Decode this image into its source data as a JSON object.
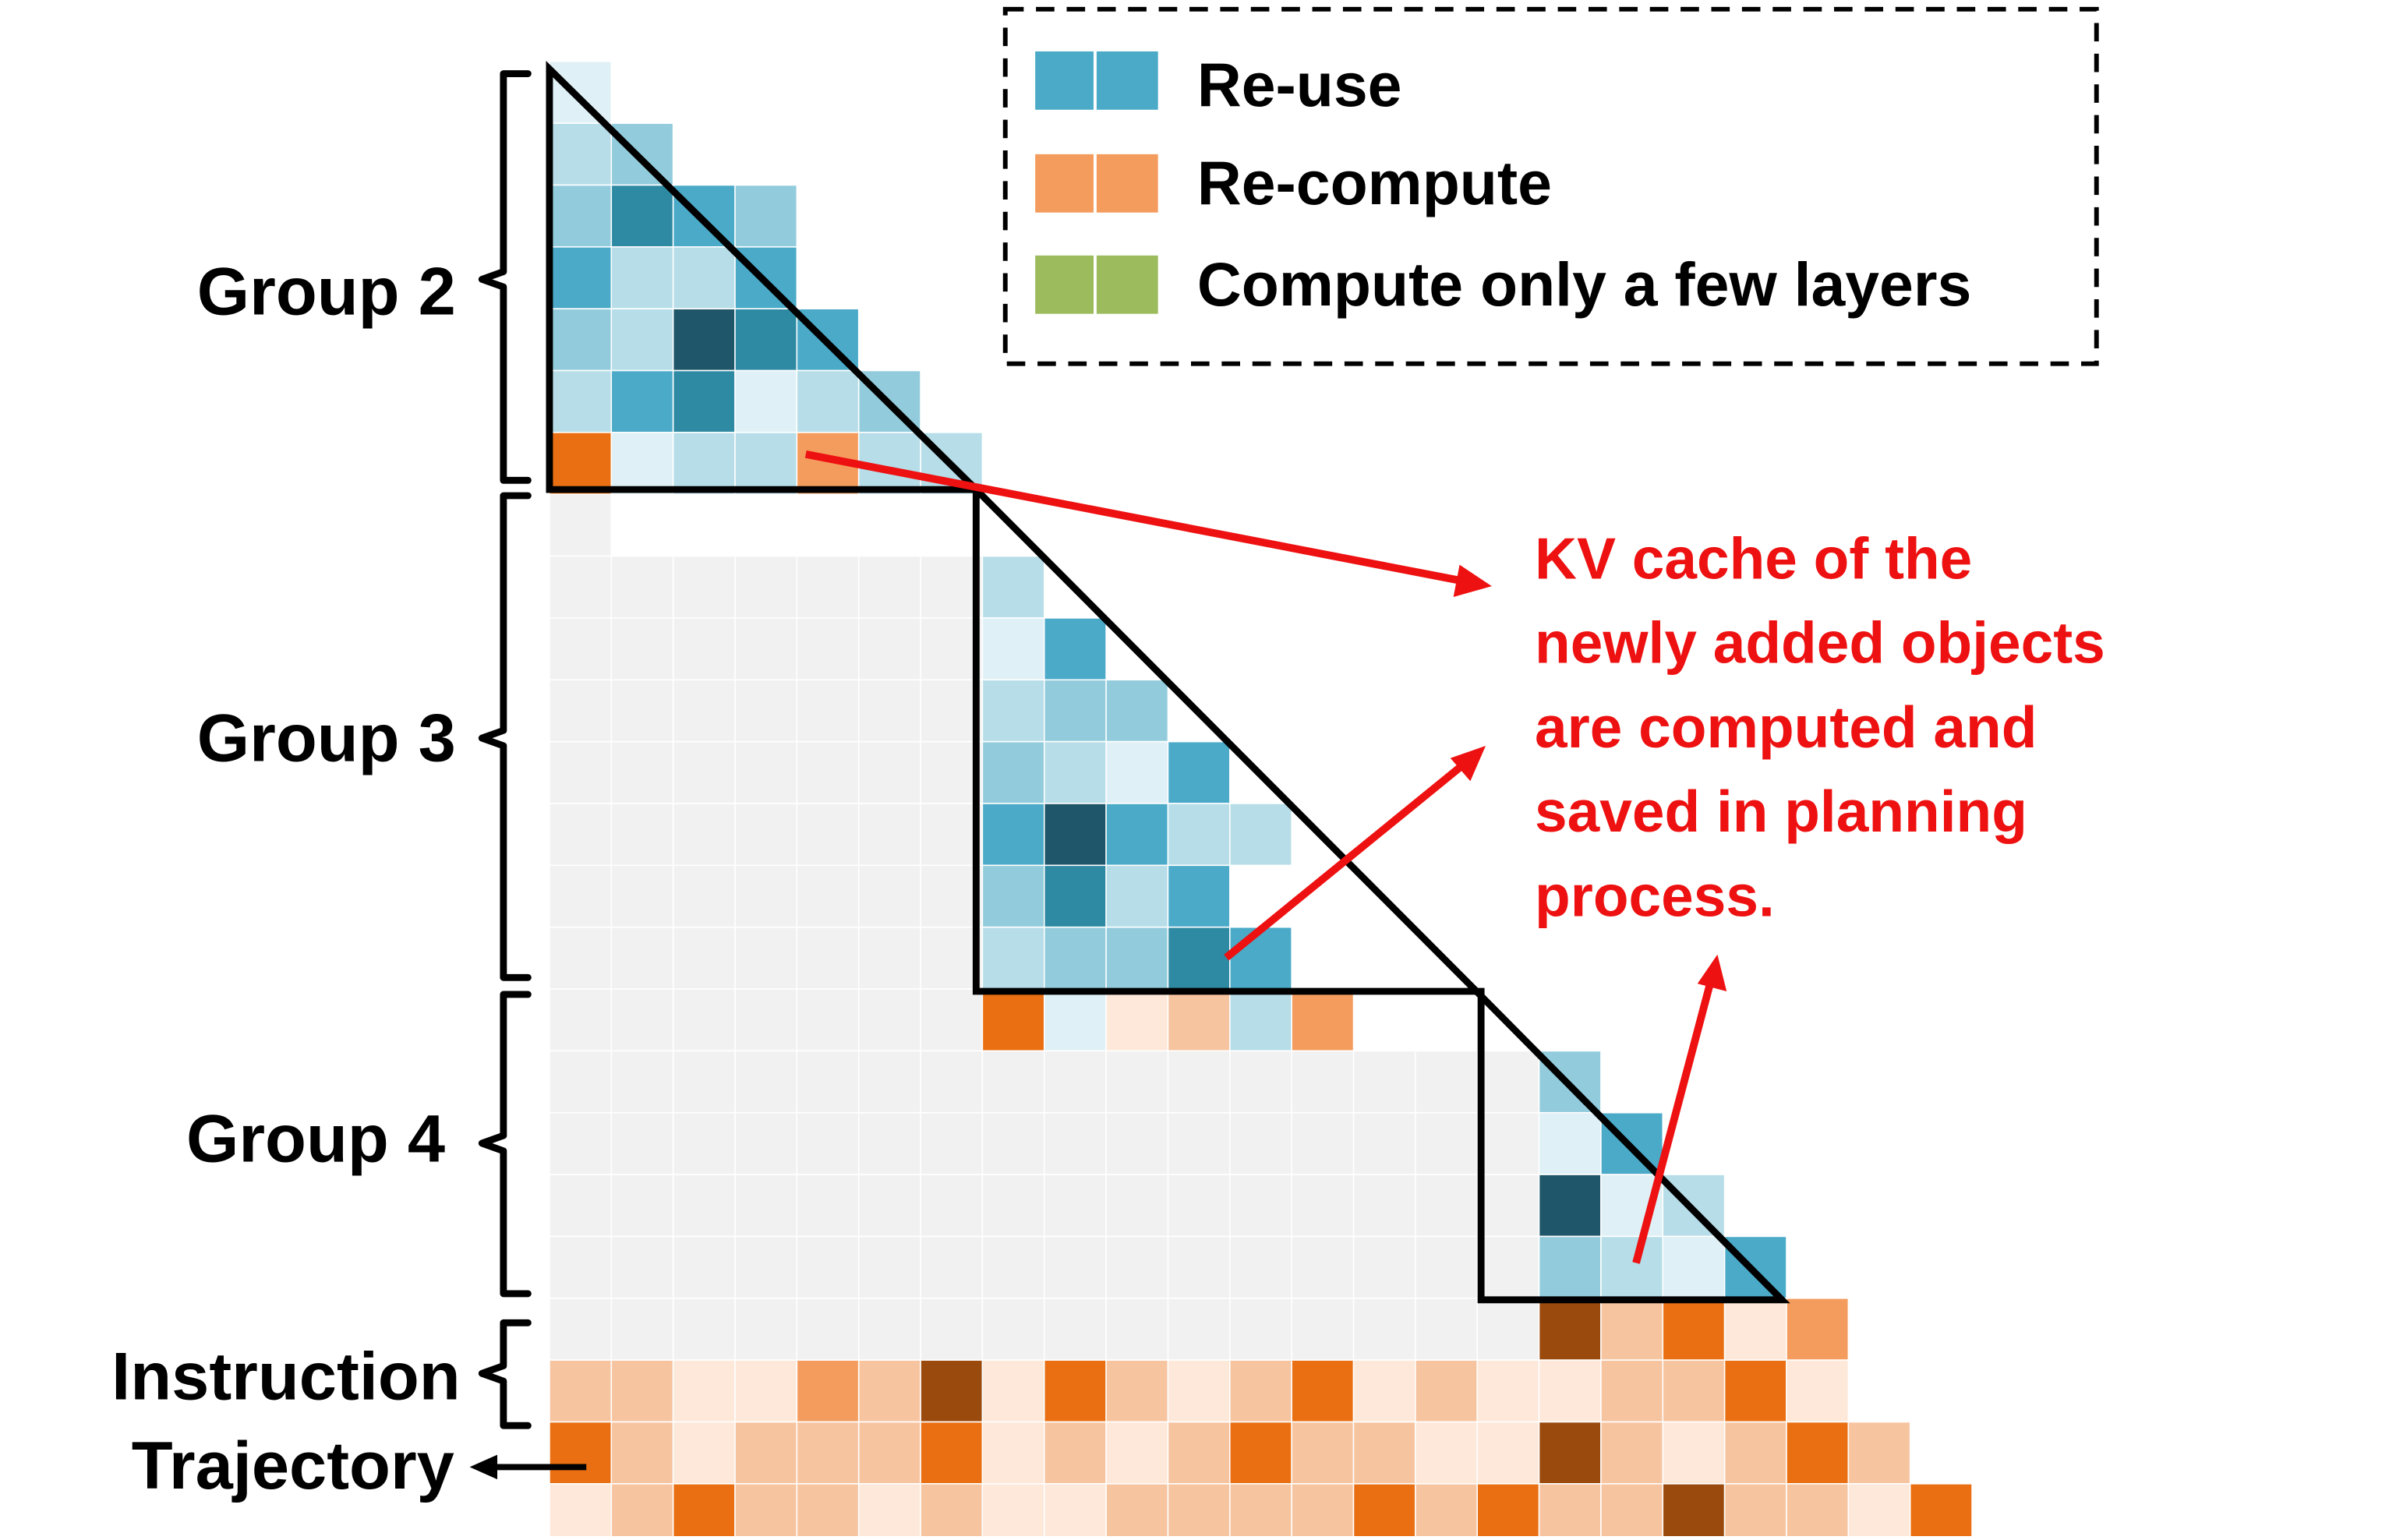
{
  "palette": {
    "empty": "#f1f1f1",
    "teal": [
      "#dff0f6",
      "#b6dde8",
      "#92ccdc",
      "#4aaac8",
      "#2e8aa3",
      "#1f5669"
    ],
    "orange": [
      "#fde8d9",
      "#f7c4a0",
      "#f49c5d",
      "#e96f12",
      "#9b4a0d"
    ],
    "green": "#9bbb5c",
    "annotation": "#ee1111",
    "lines": "#000000"
  },
  "legend": {
    "reuse": {
      "label": "Re-use",
      "color": "#4aaac8"
    },
    "recompute": {
      "label": "Re-compute",
      "color": "#f49c5d"
    },
    "partial": {
      "label": "Compute only a few layers",
      "color": "#9bbb5c"
    }
  },
  "groups": {
    "g2": {
      "label": "Group 2"
    },
    "g3": {
      "label": "Group 3"
    },
    "g4": {
      "label": "Group 4"
    },
    "instruction": {
      "label": "Instruction"
    },
    "trajectory": {
      "label": "Trajectory"
    }
  },
  "annotation": {
    "lines": [
      "KV cache of the",
      "newly added objects",
      "are computed and",
      "saved in planning",
      "process."
    ]
  },
  "matrix": {
    "rows": [
      "0",
      "12",
      "2432",
      "3113",
      "21543",
      "134012",
      "o3011o211",
      "X",
      "XXXXXXX1",
      "XXXXXXX03",
      "XXXXXXX122",
      "XXXXXXX2103",
      "XXXXXXX35311",
      "XXXXXXX2413",
      "XXXXXXX12243",
      "XXXXXXXo30o0o11o2",
      "XXXXXXXXXXXXXXXX2",
      "XXXXXXXXXXXXXXXX03",
      "XXXXXXXXXXXXXXXX501",
      "XXXXXXXXXXXXXXXX2103",
      "XXXXXXXXXXXXXXXXo4o1o3o0o2",
      "o1o1o0o0o2o1o4o0o3o1o0o1o3o0o1o0o0o1o1o3o0",
      "o3o1o0o1o1o1o3o0o1o0o1o3o1o1o0o0o4o1o0o1o3o1",
      "o0o1o3o1o1o0o1o0o0o1o1o1o1o3o1o3o1o1o4o1o1o0o3"
    ]
  }
}
